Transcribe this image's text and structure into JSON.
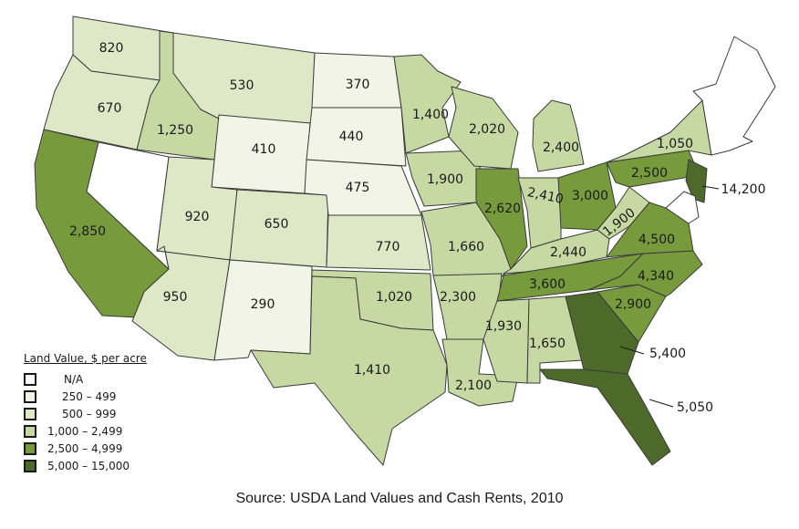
{
  "legend": {
    "title": "Land Value, $ per acre",
    "classes": [
      {
        "label": "N/A",
        "color": "#ffffff"
      },
      {
        "label": "250 – 499",
        "color": "#f2f4e6"
      },
      {
        "label": "500 – 999",
        "color": "#dfe8c6"
      },
      {
        "label": "1,000 – 2,499",
        "color": "#c6d9a3"
      },
      {
        "label": "2,500 – 4,999",
        "color": "#779a3d"
      },
      {
        "label": "5,000 – 15,000",
        "color": "#4d6a2a"
      }
    ]
  },
  "source": "Source: USDA Land Values and Cash Rents, 2010",
  "states": {
    "WA": {
      "value": "820",
      "cls": 2
    },
    "OR": {
      "value": "670",
      "cls": 2
    },
    "CA": {
      "value": "2,850",
      "cls": 4
    },
    "NV": {
      "value": "",
      "cls": 0
    },
    "ID": {
      "value": "1,250",
      "cls": 3
    },
    "MT": {
      "value": "530",
      "cls": 2
    },
    "WY": {
      "value": "410",
      "cls": 1
    },
    "UT": {
      "value": "920",
      "cls": 2
    },
    "AZ": {
      "value": "950",
      "cls": 2
    },
    "CO": {
      "value": "650",
      "cls": 2
    },
    "NM": {
      "value": "290",
      "cls": 1
    },
    "ND": {
      "value": "370",
      "cls": 1
    },
    "SD": {
      "value": "440",
      "cls": 1
    },
    "NE": {
      "value": "475",
      "cls": 1
    },
    "KS": {
      "value": "770",
      "cls": 2
    },
    "OK": {
      "value": "1,020",
      "cls": 3
    },
    "TX": {
      "value": "1,410",
      "cls": 3
    },
    "MN": {
      "value": "1,400",
      "cls": 3
    },
    "IA": {
      "value": "1,900",
      "cls": 3
    },
    "MO": {
      "value": "1,660",
      "cls": 3
    },
    "AR": {
      "value": "2,300",
      "cls": 3
    },
    "LA": {
      "value": "2,100",
      "cls": 3
    },
    "WI": {
      "value": "2,020",
      "cls": 3
    },
    "IL": {
      "value": "2,620",
      "cls": 4
    },
    "MI": {
      "value": "2,400",
      "cls": 3
    },
    "IN": {
      "value": "2,410",
      "cls": 3
    },
    "OH": {
      "value": "3,000",
      "cls": 4
    },
    "KY": {
      "value": "2,440",
      "cls": 3
    },
    "TN": {
      "value": "3,600",
      "cls": 4
    },
    "MS": {
      "value": "1,930",
      "cls": 3
    },
    "AL": {
      "value": "1,650",
      "cls": 3
    },
    "GA": {
      "value": "5,400",
      "cls": 5
    },
    "FL": {
      "value": "5,050",
      "cls": 5
    },
    "SC": {
      "value": "2,900",
      "cls": 4
    },
    "NC": {
      "value": "4,340",
      "cls": 4
    },
    "VA": {
      "value": "4,500",
      "cls": 4
    },
    "WV": {
      "value": "1,900",
      "cls": 3
    },
    "PA": {
      "value": "2,500",
      "cls": 4
    },
    "NY": {
      "value": "1,050",
      "cls": 3
    },
    "NJ": {
      "value": "14,200",
      "cls": 5
    },
    "NE_REGION": {
      "value": "",
      "cls": 0
    }
  }
}
